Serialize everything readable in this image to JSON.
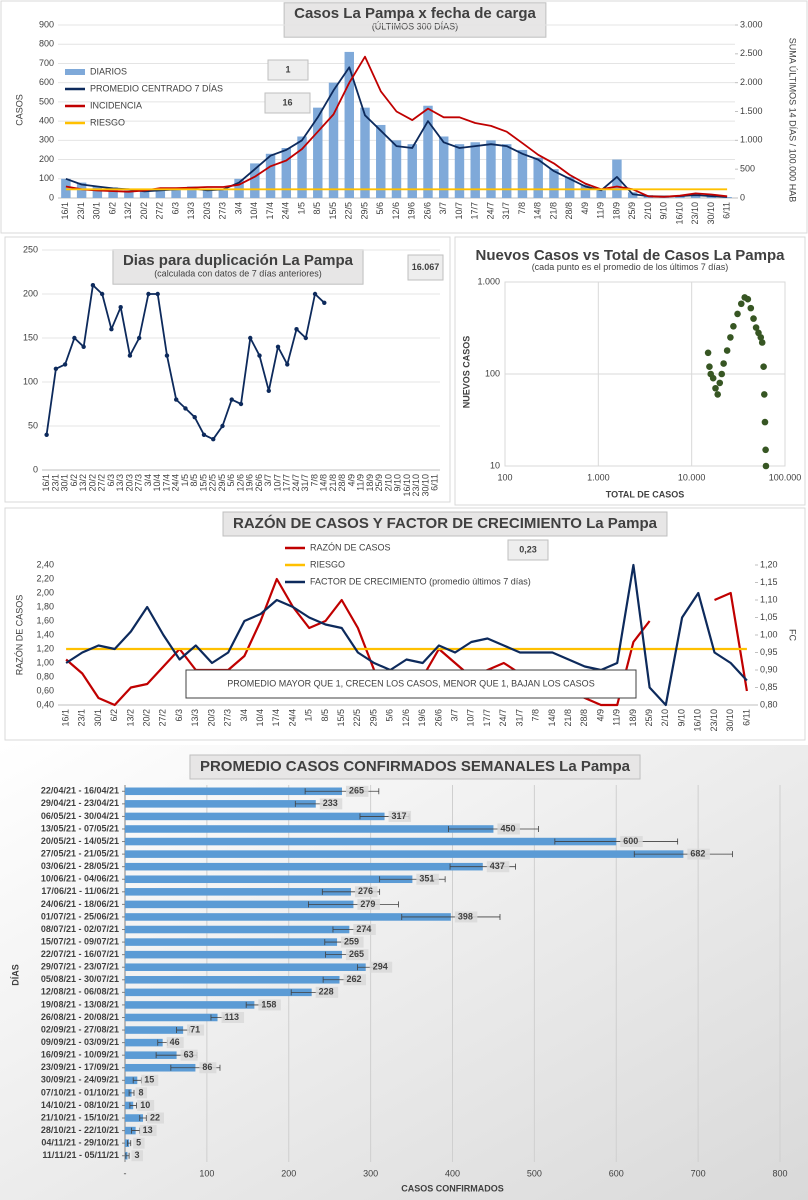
{
  "chart_data": [
    {
      "type": "combo",
      "title": "Casos La Pampa x fecha de carga",
      "subtitle": "(ÚLTIMOS 300 DÍAS)",
      "y_label": "CASOS",
      "y2_label": "SUMA ÚLTIMOS 14 DÍAS / 100.000 HAB",
      "boxes": [
        "1",
        "16"
      ],
      "grid": true,
      "categories": [
        "16/1",
        "23/1",
        "30/1",
        "6/2",
        "13/2",
        "20/2",
        "27/2",
        "6/3",
        "13/3",
        "20/3",
        "27/3",
        "3/4",
        "10/4",
        "17/4",
        "24/4",
        "1/5",
        "8/5",
        "15/5",
        "22/5",
        "29/5",
        "5/6",
        "12/6",
        "19/6",
        "26/6",
        "3/7",
        "10/7",
        "17/7",
        "24/7",
        "31/7",
        "7/8",
        "14/8",
        "21/8",
        "28/8",
        "4/9",
        "11/9",
        "18/9",
        "25/9",
        "2/10",
        "9/10",
        "16/10",
        "23/10",
        "30/10",
        "6/11"
      ],
      "ylim": [
        0,
        900
      ],
      "yticks": [
        0,
        100,
        200,
        300,
        400,
        500,
        600,
        700,
        800,
        900
      ],
      "y2lim": [
        0,
        3000
      ],
      "y2ticks": [
        0,
        500,
        {
          "value": 1000,
          "label": "1.000"
        },
        {
          "value": 1500,
          "label": "1.500"
        },
        {
          "value": 2000,
          "label": "2.000"
        },
        {
          "value": 2500,
          "label": "2.500"
        },
        {
          "value": 3000,
          "label": "3.000"
        }
      ],
      "series": [
        {
          "name": "DIARIOS",
          "type": "bar",
          "color": "#7fa9d9",
          "values": [
            100,
            80,
            60,
            55,
            40,
            45,
            40,
            50,
            60,
            50,
            40,
            100,
            180,
            230,
            260,
            320,
            470,
            600,
            760,
            470,
            380,
            300,
            280,
            480,
            320,
            280,
            290,
            300,
            280,
            250,
            210,
            150,
            110,
            70,
            40,
            200,
            30,
            15,
            10,
            12,
            20,
            15,
            5
          ]
        },
        {
          "name": "PROMEDIO CENTRADO 7 DÍAS",
          "type": "line",
          "color": "#0d2a5c",
          "values": [
            100,
            70,
            60,
            50,
            45,
            35,
            40,
            45,
            50,
            40,
            45,
            80,
            150,
            220,
            250,
            300,
            420,
            560,
            680,
            430,
            350,
            270,
            260,
            400,
            290,
            260,
            270,
            280,
            270,
            230,
            200,
            140,
            100,
            60,
            40,
            110,
            20,
            10,
            8,
            10,
            15,
            10,
            5
          ]
        },
        {
          "name": "INCIDENCIA",
          "type": "line",
          "axis": "y2",
          "color": "#c00000",
          "values": [
            200,
            150,
            130,
            120,
            110,
            130,
            170,
            170,
            180,
            190,
            190,
            230,
            370,
            550,
            650,
            850,
            1150,
            1450,
            2000,
            2450,
            1850,
            1500,
            1350,
            1550,
            1400,
            1400,
            1300,
            1250,
            1150,
            950,
            750,
            600,
            400,
            250,
            150,
            200,
            150,
            30,
            20,
            40,
            80,
            60,
            30
          ]
        },
        {
          "name": "RIESGO",
          "type": "line",
          "axis": "y2",
          "color": "#ffc000",
          "values": [
            150,
            150,
            150,
            150,
            150,
            150,
            150,
            150,
            150,
            150,
            150,
            150,
            150,
            150,
            150,
            150,
            150,
            150,
            150,
            150,
            150,
            150,
            150,
            150,
            150,
            150,
            150,
            150,
            150,
            150,
            150,
            150,
            150,
            150,
            150,
            150,
            150,
            150,
            150,
            150,
            150,
            150,
            150
          ]
        }
      ]
    },
    {
      "type": "line",
      "title": "Dias para duplicación La Pampa",
      "subtitle": "(calculada con datos de 7 días anteriores)",
      "boxes": [
        "16.067"
      ],
      "grid": true,
      "categories": [
        "16/1",
        "23/1",
        "30/1",
        "6/2",
        "13/2",
        "20/2",
        "27/2",
        "6/3",
        "13/3",
        "20/3",
        "27/3",
        "3/4",
        "10/4",
        "17/4",
        "24/4",
        "1/5",
        "8/5",
        "15/5",
        "22/5",
        "29/5",
        "5/6",
        "12/6",
        "19/6",
        "26/6",
        "3/7",
        "10/7",
        "17/7",
        "24/7",
        "31/7",
        "7/8",
        "14/8",
        "21/8",
        "28/8",
        "4/9",
        "11/9",
        "18/9",
        "25/9",
        "2/10",
        "9/10",
        "16/10",
        "23/10",
        "30/10",
        "6/11"
      ],
      "ylim": [
        0,
        250
      ],
      "yticks": [
        0,
        50,
        100,
        150,
        200,
        250
      ],
      "series": [
        {
          "name": null,
          "color": "#0d2a5c",
          "values": [
            40,
            115,
            120,
            150,
            140,
            210,
            200,
            160,
            185,
            130,
            150,
            200,
            200,
            130,
            80,
            70,
            60,
            40,
            35,
            50,
            80,
            75,
            150,
            130,
            90,
            140,
            120,
            160,
            150,
            200,
            190,
            null,
            null,
            null,
            null,
            null,
            null,
            null,
            null,
            null,
            null,
            null,
            null
          ]
        }
      ]
    },
    {
      "type": "scatter",
      "title": "Nuevos Casos vs Total de Casos La Pampa",
      "subtitle": "(cada punto es el promedio de los últimos 7 días)",
      "x_label": "TOTAL DE CASOS",
      "y_label": "NUEVOS CASOS",
      "log_x": true,
      "log_y": true,
      "grid": true,
      "color": "#375623",
      "xlim": [
        100,
        100000
      ],
      "xticks": [
        100,
        {
          "value": 1000,
          "label": "1.000"
        },
        {
          "value": 10000,
          "label": "10.000"
        },
        {
          "value": 100000,
          "label": "100.000"
        }
      ],
      "ylim": [
        10,
        1000
      ],
      "yticks": [
        10,
        100,
        {
          "value": 1000,
          "label": "1.000"
        }
      ],
      "x": [
        15000,
        15500,
        16000,
        17000,
        18000,
        19000,
        20000,
        21000,
        22000,
        24000,
        26000,
        28000,
        31000,
        34000,
        37000,
        40000,
        43000,
        46000,
        49000,
        52000,
        55000,
        57000,
        59000,
        60000,
        61000,
        62000,
        62500
      ],
      "values": [
        170,
        120,
        100,
        90,
        70,
        60,
        80,
        100,
        130,
        180,
        250,
        330,
        450,
        580,
        680,
        650,
        520,
        400,
        320,
        280,
        250,
        220,
        120,
        60,
        30,
        15,
        10
      ]
    },
    {
      "type": "line",
      "title": "RAZÓN DE CASOS Y FACTOR DE CRECIMIENTO La Pampa",
      "y_label": "RAZÓN DE CASOS",
      "y2_label": "FC",
      "boxes": [
        "0,23"
      ],
      "grid": false,
      "annotation": "PROMEDIO MAYOR QUE 1, CRECEN LOS CASOS, MENOR QUE 1, BAJAN LOS CASOS",
      "categories": [
        "16/1",
        "23/1",
        "30/1",
        "6/2",
        "13/2",
        "20/2",
        "27/2",
        "6/3",
        "13/3",
        "20/3",
        "27/3",
        "3/4",
        "10/4",
        "17/4",
        "24/4",
        "1/5",
        "8/5",
        "15/5",
        "22/5",
        "29/5",
        "5/6",
        "12/6",
        "19/6",
        "26/6",
        "3/7",
        "10/7",
        "17/7",
        "24/7",
        "31/7",
        "7/8",
        "14/8",
        "21/8",
        "28/8",
        "4/9",
        "11/9",
        "18/9",
        "25/9",
        "2/10",
        "9/10",
        "16/10",
        "23/10",
        "30/10",
        "6/11"
      ],
      "ylim": [
        0.4,
        2.4
      ],
      "yticks": [
        {
          "value": 0.4,
          "label": "0,40"
        },
        {
          "value": 0.6,
          "label": "0,60"
        },
        {
          "value": 0.8,
          "label": "0,80"
        },
        {
          "value": 1.0,
          "label": "1,00"
        },
        {
          "value": 1.2,
          "label": "1,20"
        },
        {
          "value": 1.4,
          "label": "1,40"
        },
        {
          "value": 1.6,
          "label": "1,60"
        },
        {
          "value": 1.8,
          "label": "1,80"
        },
        {
          "value": 2.0,
          "label": "2,00"
        },
        {
          "value": 2.2,
          "label": "2,20"
        },
        {
          "value": 2.4,
          "label": "2,40"
        }
      ],
      "y2lim": [
        0.8,
        1.2
      ],
      "y2ticks": [
        {
          "value": 0.8,
          "label": "0,80"
        },
        {
          "value": 0.85,
          "label": "0,85"
        },
        {
          "value": 0.9,
          "label": "0,90"
        },
        {
          "value": 0.95,
          "label": "0,95"
        },
        {
          "value": 1.0,
          "label": "1,00"
        },
        {
          "value": 1.05,
          "label": "1,05"
        },
        {
          "value": 1.1,
          "label": "1,10"
        },
        {
          "value": 1.15,
          "label": "1,15"
        },
        {
          "value": 1.2,
          "label": "1,20"
        }
      ],
      "series": [
        {
          "name": "RAZÓN DE CASOS",
          "color": "#c00000",
          "values": [
            1.05,
            0.85,
            0.5,
            0.4,
            0.65,
            0.7,
            0.95,
            1.2,
            0.9,
            0.9,
            0.9,
            1.1,
            1.6,
            2.2,
            1.8,
            1.5,
            1.6,
            1.9,
            1.5,
            0.9,
            0.75,
            0.7,
            0.8,
            1.2,
            1.0,
            0.8,
            0.9,
            1.0,
            0.85,
            0.8,
            0.75,
            0.6,
            0.5,
            0.4,
            0.4,
            1.3,
            1.6,
            null,
            null,
            null,
            1.9,
            2.0,
            0.6
          ]
        },
        {
          "name": "RIESGO",
          "color": "#ffc000",
          "values": [
            1.2,
            1.2,
            1.2,
            1.2,
            1.2,
            1.2,
            1.2,
            1.2,
            1.2,
            1.2,
            1.2,
            1.2,
            1.2,
            1.2,
            1.2,
            1.2,
            1.2,
            1.2,
            1.2,
            1.2,
            1.2,
            1.2,
            1.2,
            1.2,
            1.2,
            1.2,
            1.2,
            1.2,
            1.2,
            1.2,
            1.2,
            1.2,
            1.2,
            1.2,
            1.2,
            1.2,
            1.2,
            1.2,
            1.2,
            1.2,
            1.2,
            1.2,
            1.2
          ]
        },
        {
          "name": "FACTOR DE CRECIMIENTO (promedio últimos 7 días)",
          "axis": "y2",
          "color": "#0d2a5c",
          "values": [
            0.92,
            0.95,
            0.97,
            0.96,
            1.01,
            1.08,
            1.0,
            0.93,
            0.97,
            0.92,
            0.95,
            1.04,
            1.06,
            1.1,
            1.08,
            1.05,
            1.03,
            1.02,
            0.95,
            0.92,
            0.9,
            0.93,
            0.92,
            0.97,
            0.95,
            0.98,
            0.99,
            0.97,
            0.95,
            0.95,
            0.95,
            0.93,
            0.91,
            0.9,
            0.92,
            1.2,
            0.85,
            0.8,
            1.05,
            1.12,
            0.95,
            0.92,
            0.87
          ]
        }
      ]
    },
    {
      "type": "bar",
      "orientation": "horizontal",
      "title": "PROMEDIO CASOS CONFIRMADOS SEMANALES La Pampa",
      "x_label": "CASOS CONFIRMADOS",
      "y_label": "DÍAS",
      "color": "#5b9bd5",
      "grid": true,
      "xlim": [
        0,
        800
      ],
      "xticks": [
        {
          "value": 0,
          "label": "-"
        },
        100,
        200,
        300,
        400,
        500,
        600,
        700,
        800
      ],
      "categories": [
        "22/04/21 - 16/04/21",
        "29/04/21 - 23/04/21",
        "06/05/21 - 30/04/21",
        "13/05/21 - 07/05/21",
        "20/05/21 - 14/05/21",
        "27/05/21 - 21/05/21",
        "03/06/21 - 28/05/21",
        "10/06/21 - 04/06/21",
        "17/06/21 - 11/06/21",
        "24/06/21 - 18/06/21",
        "01/07/21 - 25/06/21",
        "08/07/21 - 02/07/21",
        "15/07/21 - 09/07/21",
        "22/07/21 - 16/07/21",
        "29/07/21 - 23/07/21",
        "05/08/21 - 30/07/21",
        "12/08/21 - 06/08/21",
        "19/08/21 - 13/08/21",
        "26/08/21 - 20/08/21",
        "02/09/21 - 27/08/21",
        "09/09/21 - 03/09/21",
        "16/09/21 - 10/09/21",
        "23/09/21 - 17/09/21",
        "30/09/21 - 24/09/21",
        "07/10/21 - 01/10/21",
        "14/10/21 - 08/10/21",
        "21/10/21 - 15/10/21",
        "28/10/21 - 22/10/21",
        "04/11/21 - 29/10/21",
        "11/11/21 - 05/11/21"
      ],
      "values": [
        265,
        233,
        317,
        450,
        600,
        682,
        437,
        351,
        276,
        279,
        398,
        274,
        259,
        265,
        294,
        262,
        228,
        158,
        113,
        71,
        46,
        63,
        86,
        15,
        8,
        10,
        22,
        13,
        5,
        3
      ],
      "errors": [
        45,
        25,
        30,
        55,
        75,
        60,
        40,
        40,
        35,
        55,
        60,
        20,
        15,
        20,
        10,
        20,
        25,
        10,
        8,
        8,
        6,
        25,
        30,
        5,
        3,
        4,
        4,
        5,
        2,
        2
      ]
    }
  ]
}
